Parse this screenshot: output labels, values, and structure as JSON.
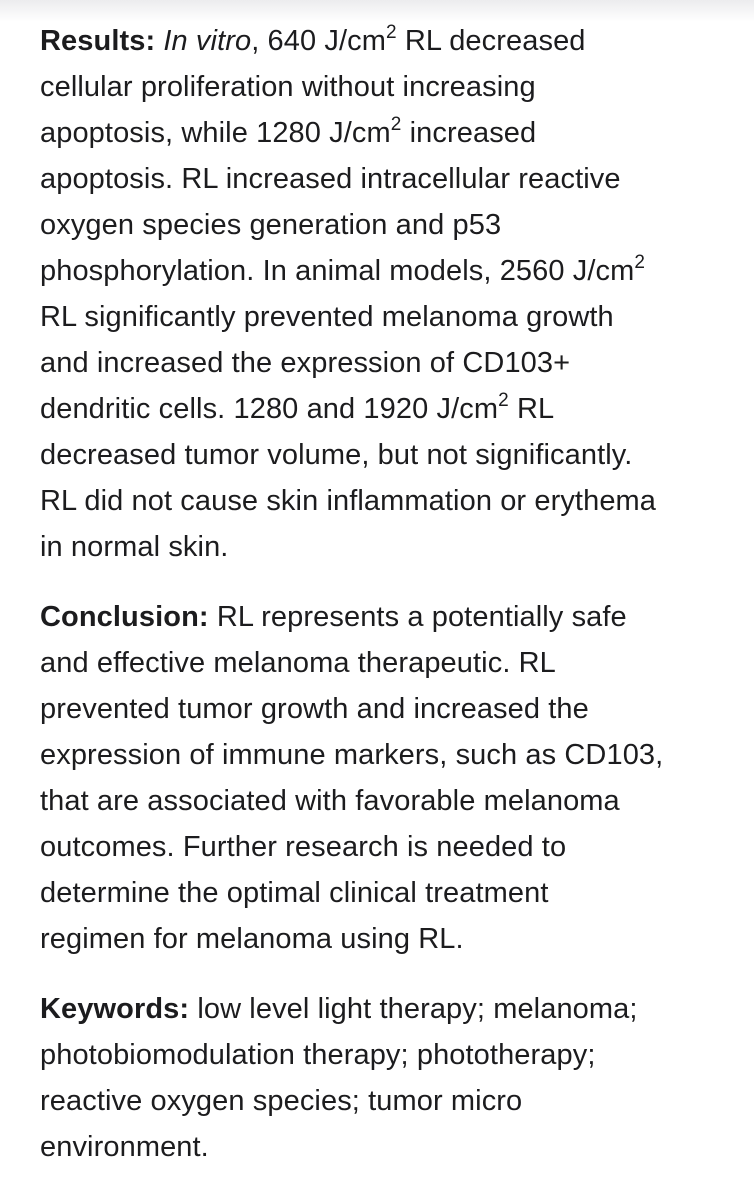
{
  "results": {
    "label": "Results:",
    "lines": [
      {
        "a": "In vitro",
        "b": ", 640 J/cm",
        "sup": "2",
        "c": " RL decreased"
      },
      {
        "text": "cellular proliferation without increasing"
      },
      {
        "a": "apoptosis, while 1280 J/cm",
        "sup": "2",
        "b": " increased"
      },
      {
        "text": "apoptosis. RL increased intracellular reactive"
      },
      {
        "text": "oxygen species generation and p53"
      },
      {
        "a": "phosphorylation. In animal models, 2560 J/cm",
        "sup": "2"
      },
      {
        "text": "RL significantly prevented melanoma growth"
      },
      {
        "text": "and increased the expression of CD103+"
      },
      {
        "a": "dendritic cells. 1280 and 1920 J/cm",
        "sup": "2",
        "b": " RL"
      },
      {
        "text": "decreased tumor volume, but not significantly."
      },
      {
        "text": "RL did not cause skin inflammation or erythema"
      },
      {
        "text": "in normal skin."
      }
    ]
  },
  "conclusion": {
    "label": "Conclusion:",
    "lines": [
      " RL represents a potentially safe",
      "and effective melanoma therapeutic. RL",
      "prevented tumor growth and increased the",
      "expression of immune markers, such as CD103,",
      "that are associated with favorable melanoma",
      "outcomes. Further research is needed to",
      "determine the optimal clinical treatment",
      "regimen for melanoma using RL."
    ]
  },
  "keywords": {
    "label": "Keywords:",
    "lines": [
      " low level light therapy; melanoma;",
      "photobiomodulation therapy; phototherapy;",
      "reactive oxygen species; tumor micro",
      "environment."
    ]
  }
}
